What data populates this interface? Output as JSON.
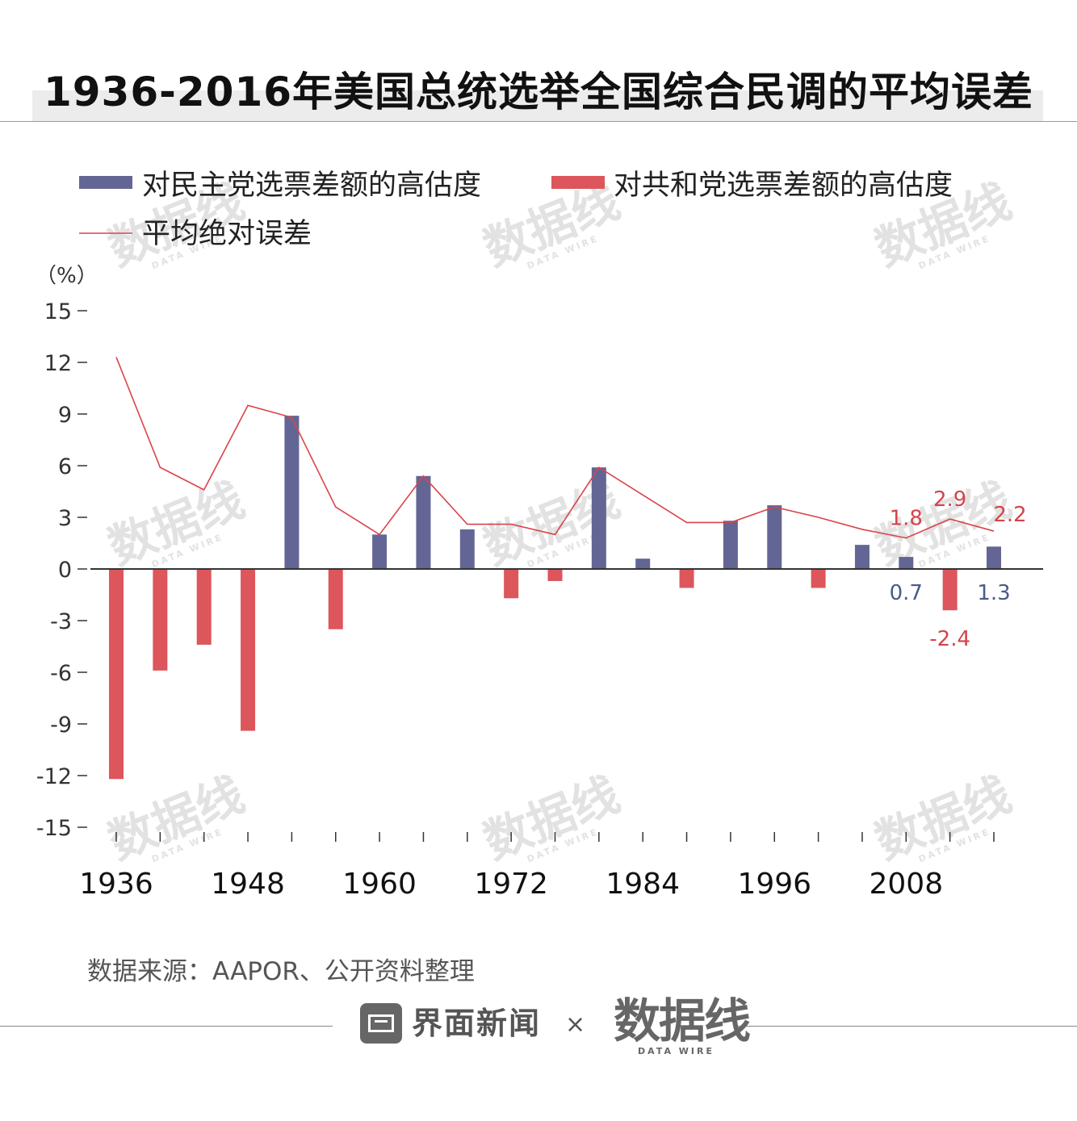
{
  "title": "1936-2016年美国总统选举全国综合民调的平均误差",
  "source": "数据来源：AAPOR、公开资料整理",
  "footer": {
    "brand": "界面新闻",
    "times": "×",
    "partner": "数据线",
    "partner_sub": "DATA WIRE"
  },
  "watermark": {
    "text": "数据线",
    "sub": "DATA WIRE"
  },
  "colors": {
    "dem": "#636695",
    "rep": "#dc565c",
    "line": "#d9444a",
    "label_blue": "#4a5a8a",
    "label_red": "#d4444a"
  },
  "chart_data": {
    "type": "bar+line",
    "title": "1936-2016年美国总统选举全国综合民调的平均误差",
    "unit_label": "（%）",
    "ylim": [
      -15,
      15
    ],
    "yticks": [
      15,
      12,
      9,
      6,
      3,
      0,
      -3,
      -6,
      -9,
      -12,
      -15
    ],
    "xtick_labels": [
      "1936",
      "1948",
      "1960",
      "1972",
      "1984",
      "1996",
      "2008"
    ],
    "categories": [
      1936,
      1940,
      1944,
      1948,
      1952,
      1956,
      1960,
      1964,
      1968,
      1972,
      1976,
      1980,
      1984,
      1988,
      1992,
      1996,
      2000,
      2004,
      2008,
      2012,
      2016
    ],
    "legend": [
      {
        "key": "dem",
        "label": "对民主党选票差额的高估度",
        "mark": "bar"
      },
      {
        "key": "rep",
        "label": "对共和党选票差额的高估度",
        "mark": "bar"
      },
      {
        "key": "mae",
        "label": "平均绝对误差",
        "mark": "line"
      }
    ],
    "series": [
      {
        "name": "对民主党选票差额的高估度",
        "key": "dem",
        "values": [
          null,
          null,
          null,
          null,
          8.9,
          null,
          2.0,
          5.4,
          2.3,
          null,
          null,
          5.9,
          0.6,
          null,
          2.8,
          3.7,
          null,
          1.4,
          0.7,
          null,
          1.3
        ]
      },
      {
        "name": "对共和党选票差额的高估度",
        "key": "rep",
        "values": [
          -12.2,
          -5.9,
          -4.4,
          -9.4,
          null,
          -3.5,
          null,
          null,
          null,
          -1.7,
          -0.7,
          null,
          null,
          -1.1,
          null,
          null,
          -1.1,
          null,
          null,
          -2.4,
          null
        ]
      },
      {
        "name": "平均绝对误差",
        "key": "mae",
        "values": [
          12.3,
          5.9,
          4.6,
          9.5,
          8.8,
          3.6,
          2.0,
          5.4,
          2.6,
          2.6,
          2.0,
          5.9,
          4.3,
          2.7,
          2.7,
          3.6,
          3.0,
          2.3,
          1.8,
          2.9,
          2.2
        ]
      }
    ],
    "data_labels": [
      {
        "text": "1.8",
        "year": 2008,
        "value": 1.8,
        "color": "red",
        "placement": "above"
      },
      {
        "text": "2.9",
        "year": 2012,
        "value": 2.9,
        "color": "red",
        "placement": "above"
      },
      {
        "text": "2.2",
        "year": 2016,
        "value": 2.2,
        "color": "red",
        "placement": "above-right"
      },
      {
        "text": "0.7",
        "year": 2008,
        "value": 0.7,
        "color": "blue",
        "placement": "below-axis"
      },
      {
        "text": "1.3",
        "year": 2016,
        "value": 1.3,
        "color": "blue",
        "placement": "below-axis"
      },
      {
        "text": "-2.4",
        "year": 2012,
        "value": -2.4,
        "color": "red",
        "placement": "below"
      }
    ]
  }
}
